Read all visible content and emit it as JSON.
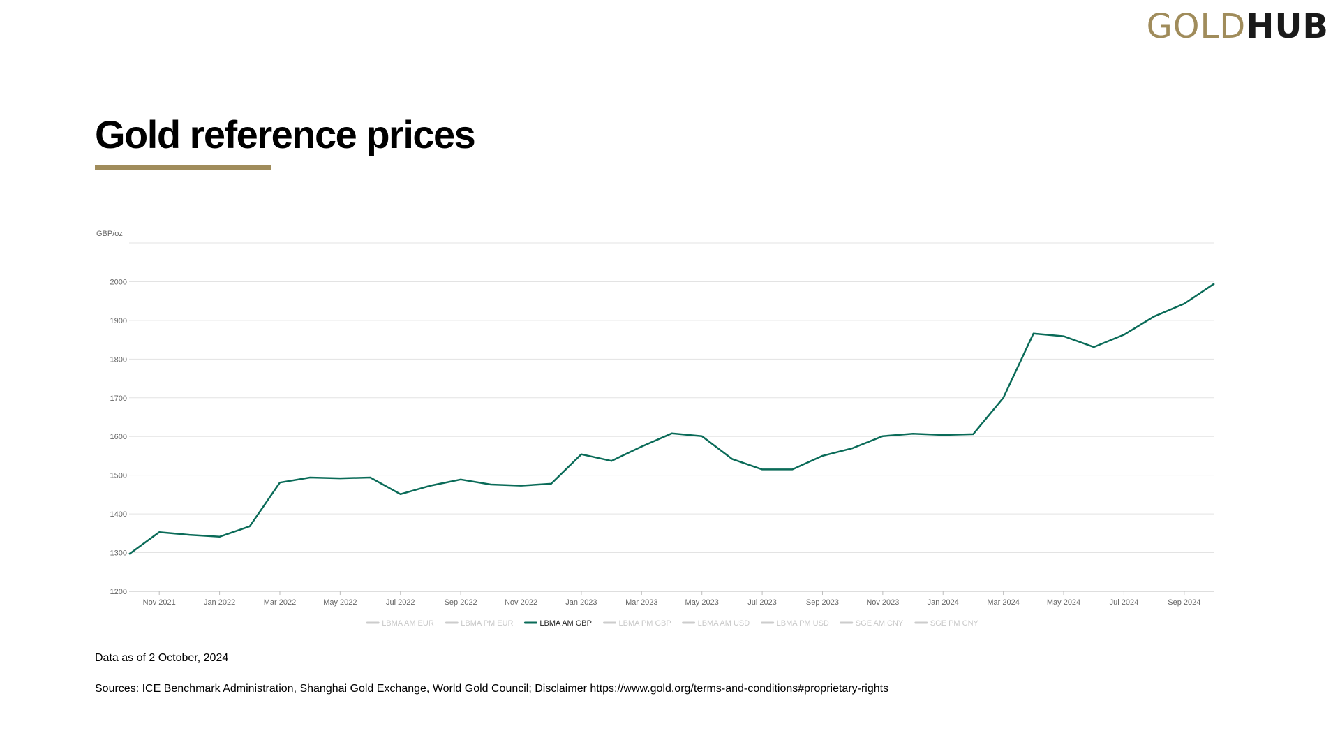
{
  "header": {
    "logo_gold": "GOLD",
    "logo_hub": "HUB",
    "title": "Gold reference prices"
  },
  "colors": {
    "accent": "#a08c5b",
    "series": "#0a6b58",
    "legend_inactive": "#cccccc"
  },
  "chart_data": {
    "type": "line",
    "ylabel": "GBP/oz",
    "ylim": [
      1200,
      2100
    ],
    "yticks": [
      1200,
      1300,
      1400,
      1500,
      1600,
      1700,
      1800,
      1900,
      2000
    ],
    "grid": true,
    "x_tick_labels": [
      "Nov 2021",
      "Jan 2022",
      "Mar 2022",
      "May 2022",
      "Jul 2022",
      "Sep 2022",
      "Nov 2022",
      "Jan 2023",
      "Mar 2023",
      "May 2023",
      "Jul 2023",
      "Sep 2023",
      "Nov 2023",
      "Jan 2024",
      "Mar 2024",
      "May 2024",
      "Jul 2024",
      "Sep 2024"
    ],
    "x": [
      "2021-10",
      "2021-11",
      "2021-12",
      "2022-01",
      "2022-02",
      "2022-03",
      "2022-04",
      "2022-05",
      "2022-06",
      "2022-07",
      "2022-08",
      "2022-09",
      "2022-10",
      "2022-11",
      "2022-12",
      "2023-01",
      "2023-02",
      "2023-03",
      "2023-04",
      "2023-05",
      "2023-06",
      "2023-07",
      "2023-08",
      "2023-09",
      "2023-10",
      "2023-11",
      "2023-12",
      "2024-01",
      "2024-02",
      "2024-03",
      "2024-04",
      "2024-05",
      "2024-06",
      "2024-07",
      "2024-08",
      "2024-09",
      "2024-10"
    ],
    "series": [
      {
        "name": "LBMA AM GBP",
        "active": true,
        "values": [
          1296,
          1353,
          1346,
          1341,
          1368,
          1481,
          1494,
          1492,
          1494,
          1451,
          1473,
          1489,
          1476,
          1473,
          1478,
          1554,
          1537,
          1574,
          1608,
          1601,
          1542,
          1515,
          1515,
          1550,
          1570,
          1601,
          1607,
          1604,
          1606,
          1700,
          1866,
          1859,
          1831,
          1863,
          1910,
          1943,
          1995
        ]
      }
    ],
    "legend": [
      {
        "name": "LBMA AM EUR",
        "active": false
      },
      {
        "name": "LBMA PM EUR",
        "active": false
      },
      {
        "name": "LBMA AM GBP",
        "active": true
      },
      {
        "name": "LBMA PM GBP",
        "active": false
      },
      {
        "name": "LBMA AM USD",
        "active": false
      },
      {
        "name": "LBMA PM USD",
        "active": false
      },
      {
        "name": "SGE AM CNY",
        "active": false
      },
      {
        "name": "SGE PM CNY",
        "active": false
      }
    ],
    "legend_position": "bottom"
  },
  "footer": {
    "data_date": "Data as of 2 October, 2024",
    "sources": "Sources: ICE Benchmark Administration, Shanghai Gold Exchange, World Gold Council; Disclaimer https://www.gold.org/terms-and-conditions#proprietary-rights"
  }
}
